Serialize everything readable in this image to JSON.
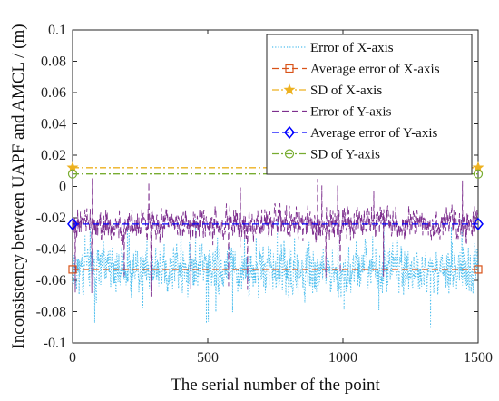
{
  "chart_data": {
    "type": "line",
    "xlabel": "The serial number of the point",
    "ylabel": "Inconsistency between UAPF and AMCL / (m)",
    "xlim": [
      0,
      1500
    ],
    "ylim": [
      -0.1,
      0.1
    ],
    "xticks": [
      0,
      500,
      1000,
      1500
    ],
    "yticks": [
      -0.1,
      -0.08,
      -0.06,
      -0.04,
      -0.02,
      0,
      0.02,
      0.04,
      0.06,
      0.08,
      0.1
    ],
    "ytick_labels": [
      "-0.1",
      "-0.08",
      "-0.06",
      "-0.04",
      "-0.02",
      "0",
      "0.02",
      "0.04",
      "0.06",
      "0.08",
      "0.1"
    ],
    "legend_position": "top-right",
    "grid": false,
    "n_points": 1500,
    "series": [
      {
        "name": "Error of X-axis",
        "style": "dotted",
        "marker": "none",
        "color": "#4DBEEE",
        "mean": -0.053,
        "sd": 0.012,
        "min": -0.09,
        "max": -0.02
      },
      {
        "name": "Average error of X-axis",
        "style": "dashed",
        "marker": "square",
        "color": "#D95319",
        "y": -0.053
      },
      {
        "name": "SD of X-axis",
        "style": "dashdot",
        "marker": "star",
        "color": "#EDB120",
        "y": 0.012
      },
      {
        "name": "Error of Y-axis",
        "style": "dashed",
        "marker": "none",
        "color": "#7E2F8E",
        "mean": -0.024,
        "sd": 0.008,
        "min": -0.072,
        "max": 0.006
      },
      {
        "name": "Average error of Y-axis",
        "style": "dashed",
        "marker": "diamond",
        "color": "#0000FF",
        "y": -0.024
      },
      {
        "name": "SD of Y-axis",
        "style": "dashdot",
        "marker": "circle",
        "color": "#77AC30",
        "y": 0.008
      }
    ]
  }
}
